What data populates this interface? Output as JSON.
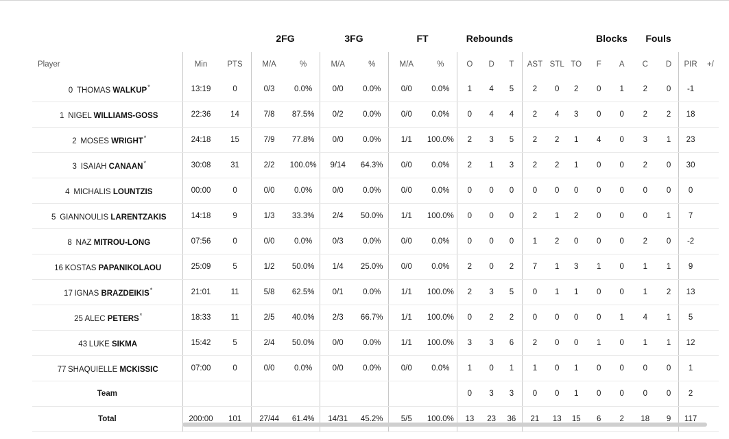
{
  "groups": {
    "fg2": "2FG",
    "fg3": "3FG",
    "ft": "FT",
    "rebounds": "Rebounds",
    "blocks": "Blocks",
    "fouls": "Fouls"
  },
  "columns": {
    "player": "Player",
    "min": "Min",
    "pts": "PTS",
    "fg2_ma": "M/A",
    "fg2_pct": "%",
    "fg3_ma": "M/A",
    "fg3_pct": "%",
    "ft_ma": "M/A",
    "ft_pct": "%",
    "reb_o": "O",
    "reb_d": "D",
    "reb_t": "T",
    "ast": "AST",
    "stl": "STL",
    "to": "TO",
    "blk_f": "F",
    "blk_a": "A",
    "foul_c": "C",
    "foul_d": "D",
    "pir": "PIR",
    "pm": "+/"
  },
  "players": [
    {
      "num": "0",
      "first": "THOMAS",
      "last": "WALKUP",
      "star": "*",
      "min": "13:19",
      "pts": "0",
      "fg2_ma": "0/3",
      "fg2_pct": "0.0%",
      "fg3_ma": "0/0",
      "fg3_pct": "0.0%",
      "ft_ma": "0/0",
      "ft_pct": "0.0%",
      "reb_o": "1",
      "reb_d": "4",
      "reb_t": "5",
      "ast": "2",
      "stl": "0",
      "to": "2",
      "blk_f": "0",
      "blk_a": "1",
      "foul_c": "2",
      "foul_d": "0",
      "pir": "-1",
      "pm": ""
    },
    {
      "num": "1",
      "first": "NIGEL",
      "last": "WILLIAMS-GOSS",
      "star": "",
      "min": "22:36",
      "pts": "14",
      "fg2_ma": "7/8",
      "fg2_pct": "87.5%",
      "fg3_ma": "0/2",
      "fg3_pct": "0.0%",
      "ft_ma": "0/0",
      "ft_pct": "0.0%",
      "reb_o": "0",
      "reb_d": "4",
      "reb_t": "4",
      "ast": "2",
      "stl": "4",
      "to": "3",
      "blk_f": "0",
      "blk_a": "0",
      "foul_c": "2",
      "foul_d": "2",
      "pir": "18",
      "pm": ""
    },
    {
      "num": "2",
      "first": "MOSES",
      "last": "WRIGHT",
      "star": "*",
      "min": "24:18",
      "pts": "15",
      "fg2_ma": "7/9",
      "fg2_pct": "77.8%",
      "fg3_ma": "0/0",
      "fg3_pct": "0.0%",
      "ft_ma": "1/1",
      "ft_pct": "100.0%",
      "reb_o": "2",
      "reb_d": "3",
      "reb_t": "5",
      "ast": "2",
      "stl": "2",
      "to": "1",
      "blk_f": "4",
      "blk_a": "0",
      "foul_c": "3",
      "foul_d": "1",
      "pir": "23",
      "pm": ""
    },
    {
      "num": "3",
      "first": "ISAIAH",
      "last": "CANAAN",
      "star": "*",
      "min": "30:08",
      "pts": "31",
      "fg2_ma": "2/2",
      "fg2_pct": "100.0%",
      "fg3_ma": "9/14",
      "fg3_pct": "64.3%",
      "ft_ma": "0/0",
      "ft_pct": "0.0%",
      "reb_o": "2",
      "reb_d": "1",
      "reb_t": "3",
      "ast": "2",
      "stl": "2",
      "to": "1",
      "blk_f": "0",
      "blk_a": "0",
      "foul_c": "2",
      "foul_d": "0",
      "pir": "30",
      "pm": ""
    },
    {
      "num": "4",
      "first": "MICHALIS",
      "last": "LOUNTZIS",
      "star": "",
      "min": "00:00",
      "pts": "0",
      "fg2_ma": "0/0",
      "fg2_pct": "0.0%",
      "fg3_ma": "0/0",
      "fg3_pct": "0.0%",
      "ft_ma": "0/0",
      "ft_pct": "0.0%",
      "reb_o": "0",
      "reb_d": "0",
      "reb_t": "0",
      "ast": "0",
      "stl": "0",
      "to": "0",
      "blk_f": "0",
      "blk_a": "0",
      "foul_c": "0",
      "foul_d": "0",
      "pir": "0",
      "pm": ""
    },
    {
      "num": "5",
      "first": "GIANNOULIS",
      "last": "LARENTZAKIS",
      "star": "",
      "min": "14:18",
      "pts": "9",
      "fg2_ma": "1/3",
      "fg2_pct": "33.3%",
      "fg3_ma": "2/4",
      "fg3_pct": "50.0%",
      "ft_ma": "1/1",
      "ft_pct": "100.0%",
      "reb_o": "0",
      "reb_d": "0",
      "reb_t": "0",
      "ast": "2",
      "stl": "1",
      "to": "2",
      "blk_f": "0",
      "blk_a": "0",
      "foul_c": "0",
      "foul_d": "1",
      "pir": "7",
      "pm": ""
    },
    {
      "num": "8",
      "first": "NAZ",
      "last": "MITROU-LONG",
      "star": "",
      "min": "07:56",
      "pts": "0",
      "fg2_ma": "0/0",
      "fg2_pct": "0.0%",
      "fg3_ma": "0/3",
      "fg3_pct": "0.0%",
      "ft_ma": "0/0",
      "ft_pct": "0.0%",
      "reb_o": "0",
      "reb_d": "0",
      "reb_t": "0",
      "ast": "1",
      "stl": "2",
      "to": "0",
      "blk_f": "0",
      "blk_a": "0",
      "foul_c": "2",
      "foul_d": "0",
      "pir": "-2",
      "pm": ""
    },
    {
      "num": "16",
      "first": "KOSTAS",
      "last": "PAPANIKOLAOU",
      "star": "",
      "min": "25:09",
      "pts": "5",
      "fg2_ma": "1/2",
      "fg2_pct": "50.0%",
      "fg3_ma": "1/4",
      "fg3_pct": "25.0%",
      "ft_ma": "0/0",
      "ft_pct": "0.0%",
      "reb_o": "2",
      "reb_d": "0",
      "reb_t": "2",
      "ast": "7",
      "stl": "1",
      "to": "3",
      "blk_f": "1",
      "blk_a": "0",
      "foul_c": "1",
      "foul_d": "1",
      "pir": "9",
      "pm": ""
    },
    {
      "num": "17",
      "first": "IGNAS",
      "last": "BRAZDEIKIS",
      "star": "*",
      "min": "21:01",
      "pts": "11",
      "fg2_ma": "5/8",
      "fg2_pct": "62.5%",
      "fg3_ma": "0/1",
      "fg3_pct": "0.0%",
      "ft_ma": "1/1",
      "ft_pct": "100.0%",
      "reb_o": "2",
      "reb_d": "3",
      "reb_t": "5",
      "ast": "0",
      "stl": "1",
      "to": "1",
      "blk_f": "0",
      "blk_a": "0",
      "foul_c": "1",
      "foul_d": "2",
      "pir": "13",
      "pm": ""
    },
    {
      "num": "25",
      "first": "ALEC",
      "last": "PETERS",
      "star": "*",
      "min": "18:33",
      "pts": "11",
      "fg2_ma": "2/5",
      "fg2_pct": "40.0%",
      "fg3_ma": "2/3",
      "fg3_pct": "66.7%",
      "ft_ma": "1/1",
      "ft_pct": "100.0%",
      "reb_o": "0",
      "reb_d": "2",
      "reb_t": "2",
      "ast": "0",
      "stl": "0",
      "to": "0",
      "blk_f": "0",
      "blk_a": "1",
      "foul_c": "4",
      "foul_d": "1",
      "pir": "5",
      "pm": ""
    },
    {
      "num": "43",
      "first": "LUKE",
      "last": "SIKMA",
      "star": "",
      "min": "15:42",
      "pts": "5",
      "fg2_ma": "2/4",
      "fg2_pct": "50.0%",
      "fg3_ma": "0/0",
      "fg3_pct": "0.0%",
      "ft_ma": "1/1",
      "ft_pct": "100.0%",
      "reb_o": "3",
      "reb_d": "3",
      "reb_t": "6",
      "ast": "2",
      "stl": "0",
      "to": "0",
      "blk_f": "1",
      "blk_a": "0",
      "foul_c": "1",
      "foul_d": "1",
      "pir": "12",
      "pm": ""
    },
    {
      "num": "77",
      "first": "SHAQUIELLE",
      "last": "MCKISSIC",
      "star": "",
      "min": "07:00",
      "pts": "0",
      "fg2_ma": "0/0",
      "fg2_pct": "0.0%",
      "fg3_ma": "0/0",
      "fg3_pct": "0.0%",
      "ft_ma": "0/0",
      "ft_pct": "0.0%",
      "reb_o": "1",
      "reb_d": "0",
      "reb_t": "1",
      "ast": "1",
      "stl": "0",
      "to": "1",
      "blk_f": "0",
      "blk_a": "0",
      "foul_c": "0",
      "foul_d": "0",
      "pir": "1",
      "pm": ""
    }
  ],
  "team_row": {
    "label": "Team",
    "reb_o": "0",
    "reb_d": "3",
    "reb_t": "3",
    "ast": "0",
    "stl": "0",
    "to": "1",
    "blk_f": "0",
    "blk_a": "0",
    "foul_c": "0",
    "foul_d": "0",
    "pir": "2"
  },
  "total_row": {
    "label": "Total",
    "min": "200:00",
    "pts": "101",
    "fg2_ma": "27/44",
    "fg2_pct": "61.4%",
    "fg3_ma": "14/31",
    "fg3_pct": "45.2%",
    "ft_ma": "5/5",
    "ft_pct": "100.0%",
    "reb_o": "13",
    "reb_d": "23",
    "reb_t": "36",
    "ast": "21",
    "stl": "13",
    "to": "15",
    "blk_f": "6",
    "blk_a": "2",
    "foul_c": "18",
    "foul_d": "9",
    "pir": "117"
  },
  "scrollbar": {
    "thumb_fraction": 0.77
  }
}
